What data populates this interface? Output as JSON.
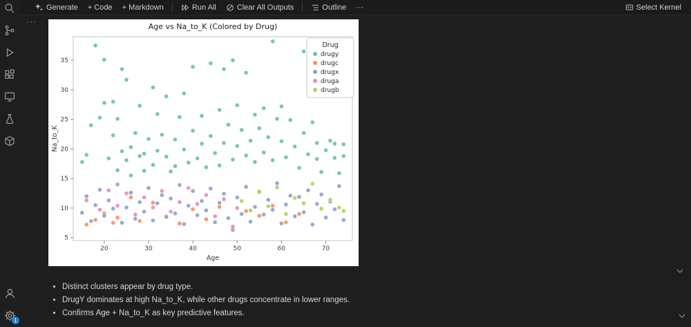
{
  "toolbar": {
    "generate": "Generate",
    "add_code": "+ Code",
    "add_markdown": "+ Markdown",
    "run_all": "Run All",
    "clear_all_outputs": "Clear All Outputs",
    "outline": "Outline",
    "more": "···",
    "select_kernel": "Select Kernel"
  },
  "activity_bar": {
    "icons": [
      "search",
      "source-control",
      "run-debug",
      "extensions",
      "remote-explorer",
      "testing",
      "jupyter-package",
      "accounts",
      "settings"
    ],
    "settings_badge": "1"
  },
  "cell": {
    "more_actions": "···"
  },
  "notes": {
    "items": [
      "Distinct clusters appear by drug type.",
      "DrugY dominates at high Na_to_K, while other drugs concentrate in lower ranges.",
      "Confirms Age + Na_to_K as key predictive features."
    ]
  },
  "colors": {
    "badge": "#1f7fd4",
    "figure_bg": "#ffffff"
  },
  "chart_data": {
    "type": "scatter",
    "title": "Age vs Na_to_K (Colored by Drug)",
    "xlabel": "Age",
    "ylabel": "Na_to_K",
    "xlim": [
      13,
      76
    ],
    "ylim": [
      4.5,
      39
    ],
    "xticks": [
      20,
      30,
      40,
      50,
      60,
      70
    ],
    "yticks": [
      5,
      10,
      15,
      20,
      25,
      30,
      35
    ],
    "legend_title": "Drug",
    "legend_position": "upper right",
    "grid": false,
    "series": [
      {
        "name": "drugy",
        "color": "#66c2a5",
        "points": [
          [
            15,
            17.8
          ],
          [
            16,
            19.0
          ],
          [
            17,
            24.0
          ],
          [
            18,
            37.5
          ],
          [
            19,
            25.3
          ],
          [
            20,
            35.1
          ],
          [
            20,
            27.8
          ],
          [
            21,
            18.4
          ],
          [
            22,
            28.0
          ],
          [
            22,
            22.3
          ],
          [
            23,
            16.4
          ],
          [
            23,
            25.1
          ],
          [
            24,
            33.5
          ],
          [
            24,
            19.6
          ],
          [
            25,
            31.7
          ],
          [
            25,
            18.1
          ],
          [
            26,
            20.3
          ],
          [
            26,
            15.5
          ],
          [
            27,
            22.7
          ],
          [
            28,
            18.8
          ],
          [
            28,
            27.3
          ],
          [
            29,
            16.3
          ],
          [
            29,
            19.2
          ],
          [
            30,
            21.7
          ],
          [
            31,
            17.3
          ],
          [
            31,
            30.4
          ],
          [
            32,
            25.9
          ],
          [
            32,
            19.7
          ],
          [
            33,
            22.4
          ],
          [
            34,
            18.7
          ],
          [
            34,
            28.9
          ],
          [
            35,
            16.2
          ],
          [
            36,
            21.6
          ],
          [
            36,
            17.1
          ],
          [
            37,
            25.4
          ],
          [
            38,
            19.9
          ],
          [
            38,
            29.4
          ],
          [
            39,
            17.7
          ],
          [
            40,
            23.1
          ],
          [
            40,
            33.9
          ],
          [
            41,
            18.4
          ],
          [
            42,
            25.6
          ],
          [
            42,
            20.9
          ],
          [
            43,
            16.9
          ],
          [
            44,
            22.2
          ],
          [
            44,
            34.5
          ],
          [
            45,
            19.3
          ],
          [
            46,
            17.2
          ],
          [
            46,
            26.6
          ],
          [
            47,
            21.0
          ],
          [
            47,
            33.5
          ],
          [
            48,
            24.1
          ],
          [
            49,
            18.2
          ],
          [
            49,
            35.0
          ],
          [
            50,
            20.5
          ],
          [
            50,
            27.4
          ],
          [
            51,
            23.2
          ],
          [
            52,
            18.9
          ],
          [
            52,
            32.9
          ],
          [
            53,
            21.4
          ],
          [
            54,
            17.8
          ],
          [
            54,
            25.8
          ],
          [
            55,
            23.5
          ],
          [
            56,
            19.4
          ],
          [
            56,
            26.9
          ],
          [
            57,
            22.0
          ],
          [
            58,
            38.2
          ],
          [
            58,
            18.1
          ],
          [
            59,
            25.1
          ],
          [
            60,
            27.2
          ],
          [
            60,
            21.3
          ],
          [
            61,
            18.6
          ],
          [
            62,
            24.9
          ],
          [
            63,
            20.4
          ],
          [
            64,
            16.8
          ],
          [
            65,
            36.5
          ],
          [
            65,
            22.7
          ],
          [
            66,
            19.1
          ],
          [
            67,
            24.5
          ],
          [
            68,
            18.3
          ],
          [
            68,
            21.0
          ],
          [
            69,
            16.1
          ],
          [
            70,
            19.8
          ],
          [
            71,
            21.4
          ],
          [
            72,
            18.5
          ],
          [
            72,
            20.9
          ],
          [
            73,
            15.9
          ],
          [
            74,
            18.8
          ],
          [
            74,
            20.8
          ]
        ]
      },
      {
        "name": "drugc",
        "color": "#fc8d62",
        "points": [
          [
            16,
            7.2
          ],
          [
            18,
            8.0
          ],
          [
            20,
            9.1
          ],
          [
            22,
            7.5
          ],
          [
            23,
            8.4
          ],
          [
            26,
            11.8
          ],
          [
            28,
            7.8
          ],
          [
            31,
            10.9
          ],
          [
            34,
            8.6
          ],
          [
            37,
            7.4
          ],
          [
            40,
            9.8
          ],
          [
            43,
            8.1
          ],
          [
            46,
            10.2
          ],
          [
            49,
            6.9
          ],
          [
            52,
            9.5
          ],
          [
            55,
            8.7
          ],
          [
            58,
            10.4
          ],
          [
            61,
            7.6
          ],
          [
            64,
            9.0
          ]
        ]
      },
      {
        "name": "drugx",
        "color": "#8da0cb",
        "points": [
          [
            15,
            9.2
          ],
          [
            16,
            12.0
          ],
          [
            17,
            7.8
          ],
          [
            18,
            10.5
          ],
          [
            19,
            13.1
          ],
          [
            20,
            8.7
          ],
          [
            21,
            11.3
          ],
          [
            22,
            9.9
          ],
          [
            23,
            14.0
          ],
          [
            24,
            7.5
          ],
          [
            25,
            10.1
          ],
          [
            26,
            12.6
          ],
          [
            27,
            8.2
          ],
          [
            28,
            11.0
          ],
          [
            29,
            9.4
          ],
          [
            30,
            13.4
          ],
          [
            31,
            7.9
          ],
          [
            32,
            10.8
          ],
          [
            33,
            12.2
          ],
          [
            34,
            8.5
          ],
          [
            35,
            11.6
          ],
          [
            36,
            9.1
          ],
          [
            37,
            13.9
          ],
          [
            38,
            7.3
          ],
          [
            39,
            10.4
          ],
          [
            40,
            12.9
          ],
          [
            41,
            8.8
          ],
          [
            42,
            11.2
          ],
          [
            43,
            9.6
          ],
          [
            44,
            13.3
          ],
          [
            45,
            7.6
          ],
          [
            46,
            10.9
          ],
          [
            47,
            12.4
          ],
          [
            48,
            8.3
          ],
          [
            49,
            6.3
          ],
          [
            50,
            11.8
          ],
          [
            51,
            9.0
          ],
          [
            52,
            13.6
          ],
          [
            53,
            7.7
          ],
          [
            54,
            10.2
          ],
          [
            55,
            12.7
          ],
          [
            56,
            8.9
          ],
          [
            57,
            11.4
          ],
          [
            58,
            9.7
          ],
          [
            59,
            14.2
          ],
          [
            60,
            7.4
          ],
          [
            61,
            10.6
          ],
          [
            62,
            12.1
          ],
          [
            63,
            8.6
          ],
          [
            64,
            11.9
          ],
          [
            65,
            9.3
          ],
          [
            66,
            13.0
          ],
          [
            67,
            7.2
          ],
          [
            68,
            10.7
          ],
          [
            69,
            12.3
          ],
          [
            70,
            8.4
          ],
          [
            71,
            11.1
          ],
          [
            72,
            9.8
          ],
          [
            73,
            13.7
          ],
          [
            74,
            8.0
          ]
        ]
      },
      {
        "name": "druga",
        "color": "#e78ac3",
        "points": [
          [
            16,
            11.3
          ],
          [
            19,
            9.7
          ],
          [
            21,
            13.0
          ],
          [
            23,
            10.4
          ],
          [
            25,
            12.5
          ],
          [
            27,
            8.9
          ],
          [
            29,
            11.8
          ],
          [
            31,
            10.1
          ],
          [
            33,
            12.9
          ],
          [
            35,
            9.4
          ],
          [
            37,
            11.0
          ],
          [
            39,
            13.4
          ],
          [
            41,
            10.7
          ],
          [
            43,
            12.2
          ],
          [
            45,
            8.6
          ],
          [
            47,
            11.5
          ],
          [
            49,
            6.8
          ],
          [
            50,
            10.0
          ]
        ]
      },
      {
        "name": "drugb",
        "color": "#a6d854",
        "points": [
          [
            51,
            11.2
          ],
          [
            53,
            9.6
          ],
          [
            55,
            12.8
          ],
          [
            57,
            10.3
          ],
          [
            59,
            13.5
          ],
          [
            61,
            9.0
          ],
          [
            63,
            11.7
          ],
          [
            65,
            10.8
          ],
          [
            67,
            14.1
          ],
          [
            69,
            9.9
          ],
          [
            71,
            11.4
          ],
          [
            73,
            10.1
          ],
          [
            74,
            9.5
          ]
        ]
      }
    ]
  }
}
